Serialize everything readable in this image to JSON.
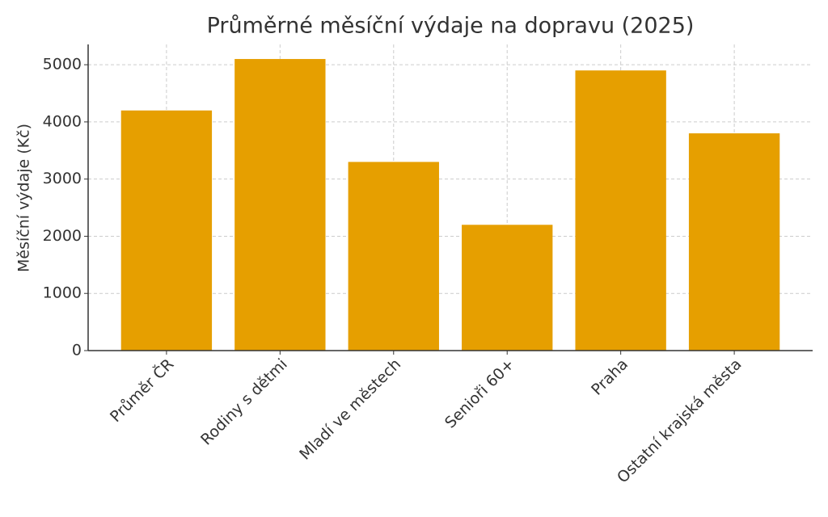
{
  "chart_data": {
    "type": "bar",
    "title": "Průměrné měsíční výdaje na dopravu (2025)",
    "y_label": "Měsíční výdaje (Kč)",
    "categories": [
      "Průměr ČR",
      "Rodiny s dětmi",
      "Mladí ve městech",
      "Senioři 60+",
      "Praha",
      "Ostatní krajská města"
    ],
    "values": [
      4200,
      5100,
      3300,
      2200,
      4900,
      3800
    ],
    "color": "#e69f00",
    "ylim": [
      0,
      5355
    ],
    "yticks": [
      0,
      1000,
      2000,
      3000,
      4000,
      5000
    ],
    "grid": true
  }
}
